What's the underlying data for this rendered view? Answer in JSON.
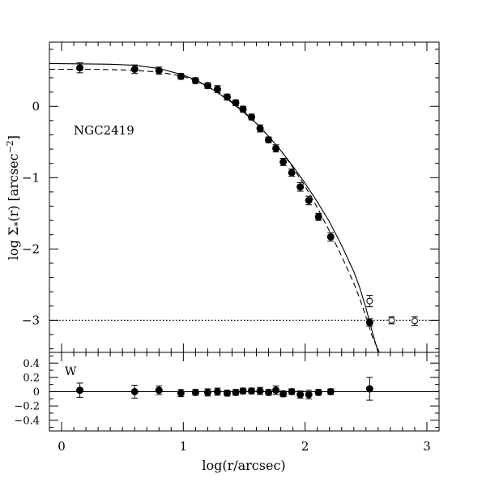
{
  "chart_data": [
    {
      "type": "scatter",
      "panel": "main",
      "title": "",
      "annotation": "NGC2419",
      "xlabel": "log(r/arcsec)",
      "ylabel": "log Σ*(r) [arcsec⁻²]",
      "xlim": [
        -0.1,
        3.1
      ],
      "ylim": [
        -3.45,
        0.9
      ],
      "x_ticks": [
        0,
        1,
        2,
        3
      ],
      "y_ticks": [
        0,
        -1,
        -2,
        -3
      ],
      "grid": false,
      "series": [
        {
          "style": "filled-circle-errorbar",
          "x": [
            0.15,
            0.6,
            0.8,
            0.98,
            1.1,
            1.2,
            1.28,
            1.36,
            1.43,
            1.49,
            1.56,
            1.63,
            1.7,
            1.76,
            1.82,
            1.89,
            1.96,
            2.03,
            2.11,
            2.21,
            2.53
          ],
          "y": [
            0.54,
            0.52,
            0.5,
            0.42,
            0.36,
            0.29,
            0.24,
            0.13,
            0.05,
            -0.04,
            -0.15,
            -0.31,
            -0.47,
            -0.59,
            -0.78,
            -0.93,
            -1.13,
            -1.32,
            -1.55,
            -1.83,
            -3.03
          ],
          "err": [
            0.07,
            0.06,
            0.05,
            0.04,
            0.04,
            0.04,
            0.05,
            0.04,
            0.04,
            0.04,
            0.04,
            0.05,
            0.04,
            0.05,
            0.05,
            0.05,
            0.06,
            0.06,
            0.05,
            0.06,
            0.05
          ]
        },
        {
          "style": "open-circle-errorbar",
          "x": [
            2.53,
            2.71,
            2.9
          ],
          "y": [
            -2.73,
            -3.0,
            -3.01
          ],
          "err": [
            0.08,
            0.05,
            0.06
          ]
        }
      ],
      "models": [
        {
          "style": "solid",
          "x": [
            -0.1,
            0.2,
            0.4,
            0.6,
            0.8,
            1.0,
            1.1,
            1.2,
            1.3,
            1.4,
            1.5,
            1.6,
            1.7,
            1.8,
            1.9,
            2.0,
            2.1,
            2.2,
            2.3,
            2.4,
            2.45,
            2.5,
            2.55,
            2.6
          ],
          "y": [
            0.6,
            0.595,
            0.59,
            0.575,
            0.53,
            0.44,
            0.37,
            0.28,
            0.17,
            0.05,
            -0.09,
            -0.24,
            -0.42,
            -0.62,
            -0.84,
            -1.08,
            -1.34,
            -1.62,
            -1.95,
            -2.32,
            -2.55,
            -2.83,
            -3.15,
            -3.5
          ]
        },
        {
          "style": "dashed",
          "x": [
            -0.1,
            0.2,
            0.4,
            0.6,
            0.8,
            1.0,
            1.1,
            1.2,
            1.3,
            1.4,
            1.5,
            1.6,
            1.7,
            1.8,
            1.9,
            2.0,
            2.1,
            2.2,
            2.3,
            2.4,
            2.45,
            2.5,
            2.55,
            2.61
          ],
          "y": [
            0.52,
            0.52,
            0.515,
            0.505,
            0.48,
            0.42,
            0.36,
            0.28,
            0.18,
            0.06,
            -0.08,
            -0.24,
            -0.42,
            -0.62,
            -0.86,
            -1.12,
            -1.42,
            -1.75,
            -2.1,
            -2.48,
            -2.7,
            -2.95,
            -3.22,
            -3.5
          ]
        },
        {
          "style": "dotted",
          "x": [
            -0.1,
            3.1
          ],
          "y": [
            -3.0,
            -3.0
          ]
        }
      ]
    },
    {
      "type": "scatter",
      "panel": "residual",
      "annotation": "W",
      "xlim": [
        -0.1,
        3.1
      ],
      "ylim": [
        -0.55,
        0.55
      ],
      "y_ticks": [
        0.4,
        0.2,
        0,
        -0.2,
        -0.4
      ],
      "y_tick_labels": [
        "0.4",
        "0.2",
        "0",
        "−0.2",
        "−0.4"
      ],
      "series": [
        {
          "style": "filled-circle-errorbar",
          "x": [
            0.15,
            0.6,
            0.8,
            0.98,
            1.1,
            1.2,
            1.28,
            1.36,
            1.43,
            1.49,
            1.56,
            1.63,
            1.7,
            1.76,
            1.82,
            1.89,
            1.96,
            2.03,
            2.11,
            2.21,
            2.53
          ],
          "y": [
            0.02,
            0.0,
            0.02,
            -0.02,
            -0.01,
            -0.01,
            0.0,
            -0.02,
            -0.01,
            0.01,
            0.01,
            0.01,
            -0.01,
            0.02,
            -0.03,
            0.0,
            -0.04,
            -0.04,
            -0.01,
            0.0,
            0.04
          ],
          "err": [
            0.1,
            0.09,
            0.06,
            0.05,
            0.04,
            0.05,
            0.05,
            0.04,
            0.04,
            0.04,
            0.04,
            0.05,
            0.04,
            0.06,
            0.04,
            0.04,
            0.05,
            0.06,
            0.04,
            0.04,
            0.16
          ]
        }
      ],
      "models": [
        {
          "style": "solid",
          "x": [
            -0.1,
            3.1
          ],
          "y": [
            0,
            0
          ]
        }
      ]
    }
  ],
  "x_tick_labels": [
    "0",
    "1",
    "2",
    "3"
  ],
  "y_tick_labels": [
    "0",
    "−1",
    "−2",
    "−3"
  ],
  "ylabel_parts": {
    "prefix": "log Σ",
    "sub": "*",
    "mid": "(r) [arcsec",
    "sup": "−2",
    "end": "]"
  }
}
